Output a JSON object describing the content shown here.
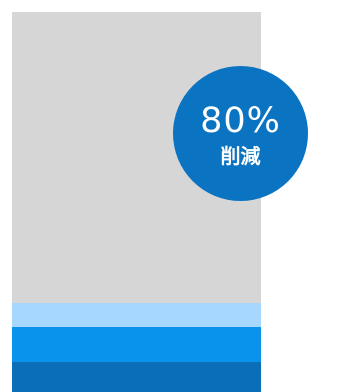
{
  "colors": {
    "column": "#d6d6d6",
    "band_light": "#a6d8ff",
    "band_mid": "#0a93ec",
    "band_dark": "#0a6fb8",
    "badge": "#0a73c2",
    "badge_text": "#ffffff"
  },
  "badge": {
    "value": "80%",
    "label": "削減"
  }
}
